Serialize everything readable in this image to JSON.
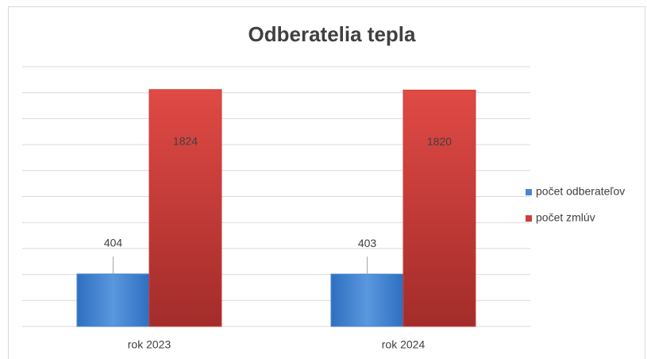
{
  "chart_data": {
    "type": "bar",
    "title": "Odberatelia tepla",
    "categories": [
      "rok 2023",
      "rok 2024"
    ],
    "series": [
      {
        "name": "počet odberateľov",
        "color": "#4a86d0",
        "values": [
          404,
          403
        ]
      },
      {
        "name": "počet zmlúv",
        "color": "#c9403c",
        "values": [
          1824,
          1820
        ]
      }
    ],
    "ylim": [
      0,
      2000
    ],
    "yticks": [
      0,
      200,
      400,
      600,
      800,
      1000,
      1200,
      1400,
      1600,
      1800,
      2000
    ],
    "grid": true,
    "legend": "right"
  }
}
